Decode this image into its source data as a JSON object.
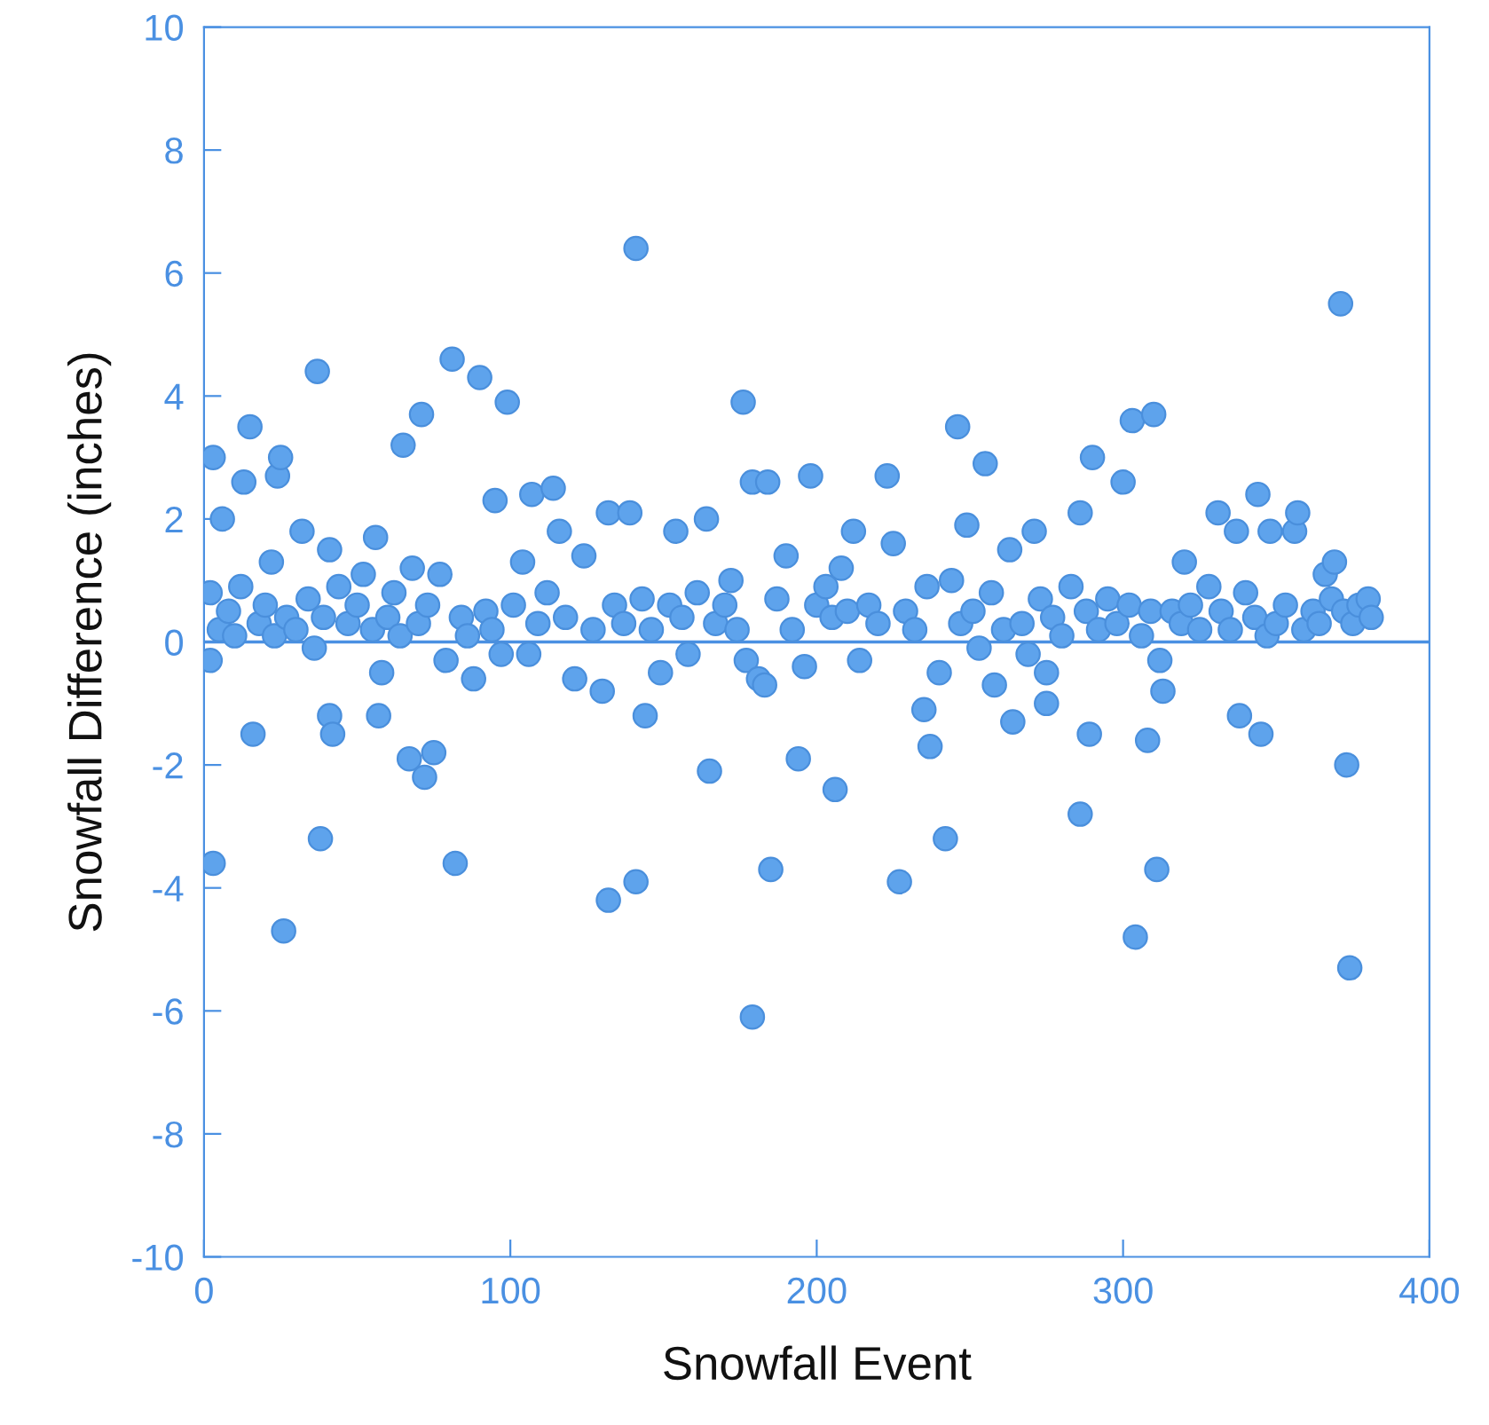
{
  "chart_data": {
    "type": "scatter",
    "xlabel": "Snowfall Event",
    "ylabel": "Snowfall Difference (inches)",
    "xlim": [
      0,
      400
    ],
    "xticks": [
      0,
      100,
      200,
      300,
      400
    ],
    "ylim": [
      -10,
      10
    ],
    "yticks": [
      -10,
      -8,
      -6,
      -4,
      -2,
      0,
      2,
      4,
      6,
      8,
      10
    ],
    "grid": false,
    "marker": "circle",
    "ref_lines": [
      {
        "axis": "y",
        "value": 0,
        "color": "#4a90e2"
      }
    ],
    "series": [
      {
        "color": "#5ea3ec",
        "x": [
          2,
          3,
          3,
          6,
          2,
          13,
          15,
          16,
          22,
          24,
          25,
          26,
          32,
          37,
          38,
          41,
          42,
          41,
          57,
          56,
          65,
          67,
          71,
          72,
          75,
          81,
          82,
          90,
          99,
          95,
          107,
          114,
          132,
          139,
          132,
          141,
          141,
          144,
          154,
          165,
          164,
          176,
          179,
          184,
          179,
          185,
          194,
          198,
          206,
          212,
          223,
          227,
          235,
          237,
          242,
          246,
          249,
          255,
          258,
          264,
          271,
          275,
          275,
          286,
          286,
          289,
          290,
          300,
          303,
          310,
          304,
          311,
          308,
          313,
          320,
          331,
          337,
          338,
          344,
          345,
          348,
          356,
          357,
          371,
          374,
          373,
          366,
          369,
          5,
          8,
          10,
          12,
          18,
          20,
          23,
          27,
          30,
          34,
          36,
          39,
          44,
          47,
          50,
          52,
          55,
          58,
          60,
          62,
          64,
          68,
          70,
          73,
          77,
          79,
          84,
          86,
          88,
          92,
          94,
          97,
          101,
          104,
          106,
          109,
          112,
          116,
          118,
          121,
          124,
          127,
          130,
          134,
          137,
          143,
          146,
          149,
          152,
          156,
          158,
          161,
          167,
          170,
          172,
          174,
          177,
          181,
          183,
          187,
          190,
          192,
          196,
          200,
          203,
          205,
          208,
          210,
          214,
          217,
          220,
          225,
          229,
          232,
          236,
          240,
          244,
          247,
          251,
          253,
          257,
          261,
          263,
          267,
          269,
          273,
          277,
          280,
          283,
          288,
          292,
          295,
          298,
          302,
          306,
          309,
          312,
          316,
          319,
          322,
          325,
          328,
          332,
          335,
          340,
          343,
          347,
          350,
          353,
          359,
          362,
          364,
          368,
          372,
          375,
          377,
          380,
          381
        ],
        "values": [
          -0.3,
          -3.6,
          3.0,
          2.0,
          0.8,
          2.6,
          3.5,
          -1.5,
          1.3,
          2.7,
          3.0,
          -4.7,
          1.8,
          4.4,
          -3.2,
          -1.2,
          -1.5,
          1.5,
          -1.2,
          1.7,
          3.2,
          -1.9,
          3.7,
          -2.2,
          -1.8,
          4.6,
          -3.6,
          4.3,
          3.9,
          2.3,
          2.4,
          2.5,
          2.1,
          2.1,
          -4.2,
          6.4,
          -3.9,
          -1.2,
          1.8,
          -2.1,
          2.0,
          3.9,
          2.6,
          2.6,
          -6.1,
          -3.7,
          -1.9,
          2.7,
          -2.4,
          1.8,
          2.7,
          -3.9,
          -1.1,
          -1.7,
          -3.2,
          3.5,
          1.9,
          2.9,
          -0.7,
          -1.3,
          1.8,
          -0.5,
          -1.0,
          -2.8,
          2.1,
          -1.5,
          3.0,
          2.6,
          3.6,
          3.7,
          -4.8,
          -3.7,
          -1.6,
          -0.8,
          1.3,
          2.1,
          1.8,
          -1.2,
          2.4,
          -1.5,
          1.8,
          1.8,
          2.1,
          5.5,
          -5.3,
          -2.0,
          1.1,
          1.3,
          0.2,
          0.5,
          0.1,
          0.9,
          0.3,
          0.6,
          0.1,
          0.4,
          0.2,
          0.7,
          -0.1,
          0.4,
          0.9,
          0.3,
          0.6,
          1.1,
          0.2,
          -0.5,
          0.4,
          0.8,
          0.1,
          1.2,
          0.3,
          0.6,
          1.1,
          -0.3,
          0.4,
          0.1,
          -0.6,
          0.5,
          0.2,
          -0.2,
          0.6,
          1.3,
          -0.2,
          0.3,
          0.8,
          1.8,
          0.4,
          -0.6,
          1.4,
          0.2,
          -0.8,
          0.6,
          0.3,
          0.7,
          0.2,
          -0.5,
          0.6,
          0.4,
          -0.2,
          0.8,
          0.3,
          0.6,
          1.0,
          0.2,
          -0.3,
          -0.6,
          -0.7,
          0.7,
          1.4,
          0.2,
          -0.4,
          0.6,
          0.9,
          0.4,
          1.2,
          0.5,
          -0.3,
          0.6,
          0.3,
          1.6,
          0.5,
          0.2,
          0.9,
          -0.5,
          1.0,
          0.3,
          0.5,
          -0.1,
          0.8,
          0.2,
          1.5,
          0.3,
          -0.2,
          0.7,
          0.4,
          0.1,
          0.9,
          0.5,
          0.2,
          0.7,
          0.3,
          0.6,
          0.1,
          0.5,
          -0.3,
          0.5,
          0.3,
          0.6,
          0.2,
          0.9,
          0.5,
          0.2,
          0.8,
          0.4,
          0.1,
          0.3,
          0.6,
          0.2,
          0.5,
          0.3,
          0.7,
          0.5,
          0.3,
          0.6,
          0.7,
          0.4
        ]
      }
    ]
  }
}
